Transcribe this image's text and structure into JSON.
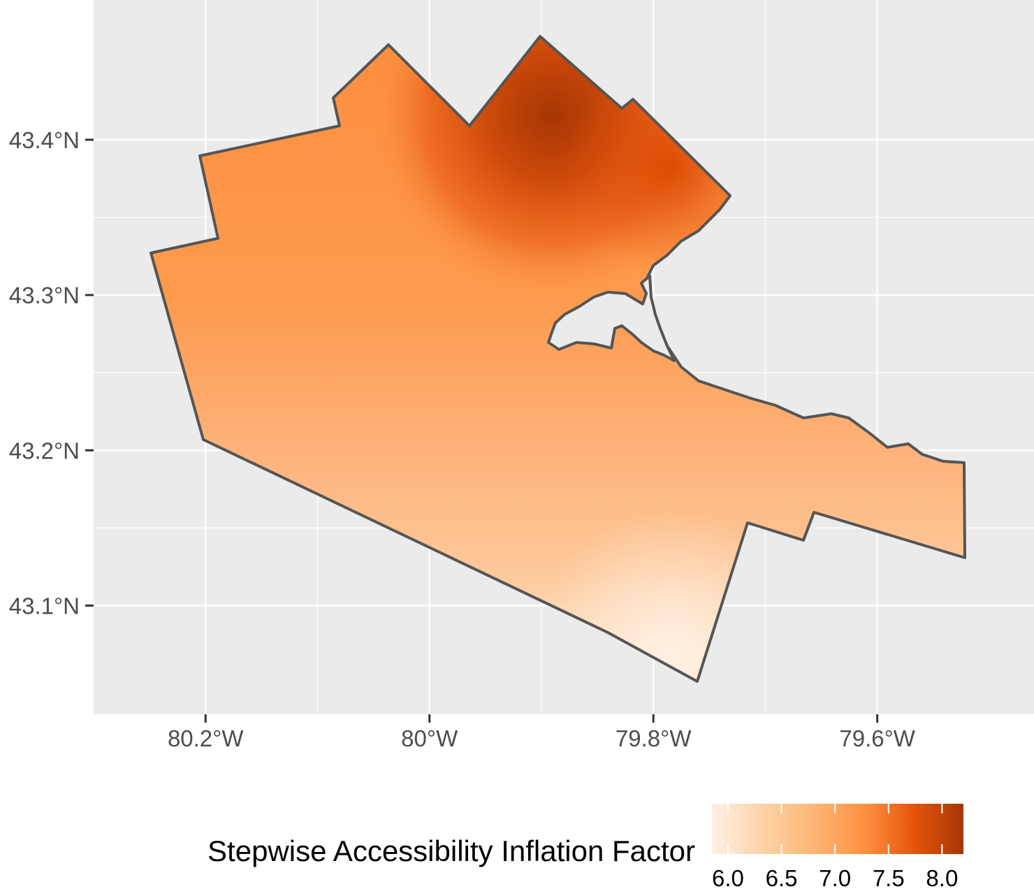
{
  "map": {
    "lat_ticks": [
      {
        "value": 43.4,
        "label": "43.4°N"
      },
      {
        "value": 43.3,
        "label": "43.3°N"
      },
      {
        "value": 43.2,
        "label": "43.2°N"
      },
      {
        "value": 43.1,
        "label": "43.1°N"
      }
    ],
    "lon_ticks": [
      {
        "value": -80.2,
        "label": "80.2°W"
      },
      {
        "value": -80.0,
        "label": "80°W"
      },
      {
        "value": -79.8,
        "label": "79.8°W"
      },
      {
        "value": -79.6,
        "label": "79.6°W"
      }
    ],
    "lon_range": [
      -80.3,
      -79.46
    ],
    "lat_range": [
      43.03,
      43.49
    ],
    "panel_color": "#ebebeb",
    "grid_color": "#ffffff",
    "border_color": "#555555",
    "legend": {
      "title": "Stepwise Accessibility Inflation Factor",
      "placement": "bottom",
      "range": [
        5.85,
        8.2
      ],
      "ticks": [
        {
          "value": 6.0,
          "label": "6.0"
        },
        {
          "value": 6.5,
          "label": "6.5"
        },
        {
          "value": 7.0,
          "label": "7.0"
        },
        {
          "value": 7.5,
          "label": "7.5"
        },
        {
          "value": 8.0,
          "label": "8.0"
        }
      ],
      "colors": [
        "#fff0e4",
        "#fdd0a2",
        "#fdae6b",
        "#fd8d3c",
        "#e6550d",
        "#a63603"
      ]
    }
  }
}
